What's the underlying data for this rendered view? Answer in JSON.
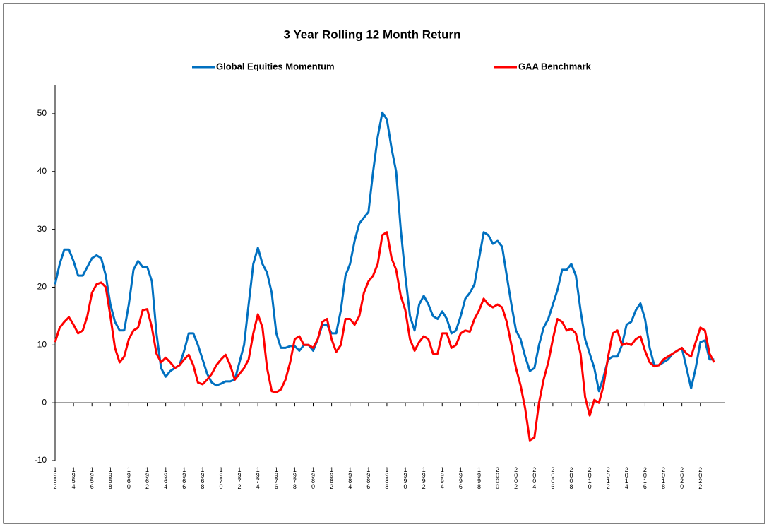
{
  "chart_data": {
    "type": "line",
    "title": "3 Year Rolling 12 Month Return",
    "legend": "top",
    "x": [
      1952,
      1952.5,
      1953,
      1953.5,
      1954,
      1954.5,
      1955,
      1955.5,
      1956,
      1956.5,
      1957,
      1957.5,
      1958,
      1958.5,
      1959,
      1959.5,
      1960,
      1960.5,
      1961,
      1961.5,
      1962,
      1962.5,
      1963,
      1963.5,
      1964,
      1964.5,
      1965,
      1965.5,
      1966,
      1966.5,
      1967,
      1967.5,
      1968,
      1968.5,
      1969,
      1969.5,
      1970,
      1970.5,
      1971,
      1971.5,
      1972,
      1972.5,
      1973,
      1973.5,
      1974,
      1974.5,
      1975,
      1975.5,
      1976,
      1976.5,
      1977,
      1977.5,
      1978,
      1978.5,
      1979,
      1979.5,
      1980,
      1980.5,
      1981,
      1981.5,
      1982,
      1982.5,
      1983,
      1983.5,
      1984,
      1984.5,
      1985,
      1985.5,
      1986,
      1986.5,
      1987,
      1987.5,
      1988,
      1988.5,
      1989,
      1989.5,
      1990,
      1990.5,
      1991,
      1991.5,
      1992,
      1992.5,
      1993,
      1993.5,
      1994,
      1994.5,
      1995,
      1995.5,
      1996,
      1996.5,
      1997,
      1997.5,
      1998,
      1998.5,
      1999,
      1999.5,
      2000,
      2000.5,
      2001,
      2001.5,
      2002,
      2002.5,
      2003,
      2003.5,
      2004,
      2004.5,
      2005,
      2005.5,
      2006,
      2006.5,
      2007,
      2007.5,
      2008,
      2008.5,
      2009,
      2009.5,
      2010,
      2010.5,
      2011,
      2011.5,
      2012,
      2012.5,
      2013,
      2013.5,
      2014,
      2014.5,
      2015,
      2015.5,
      2016,
      2016.5,
      2017,
      2017.5,
      2018,
      2018.5,
      2019,
      2019.5,
      2020,
      2020.5,
      2021,
      2021.5,
      2022,
      2022.5,
      2023,
      2023.5
    ],
    "series": [
      {
        "name": "Global Equities Momentum",
        "color": "#0070c0",
        "values": [
          20.5,
          24,
          26.5,
          26.5,
          24.5,
          22,
          22,
          23.5,
          25,
          25.5,
          25,
          22,
          17,
          14,
          12.5,
          12.5,
          17,
          23,
          24.5,
          23.5,
          23.5,
          21,
          12,
          6,
          4.5,
          5.5,
          6,
          6.5,
          9,
          12,
          12,
          10,
          7.5,
          5,
          3.5,
          3,
          3.3,
          3.7,
          3.7,
          4,
          7,
          10,
          17,
          24,
          26.8,
          24,
          22.5,
          19,
          12,
          9.5,
          9.5,
          9.8,
          9.8,
          9,
          10,
          10,
          9,
          11,
          13.5,
          13.5,
          12,
          12,
          16,
          22,
          24,
          28,
          31,
          32,
          33,
          40,
          46,
          50.2,
          49,
          44,
          40,
          30,
          22,
          15,
          12.5,
          17,
          18.5,
          17,
          15,
          14.5,
          15.8,
          14.5,
          12,
          12.5,
          15,
          18,
          19,
          20.5,
          25,
          29.5,
          29,
          27.5,
          28,
          27,
          22,
          17,
          12.5,
          11,
          8,
          5.5,
          6,
          10,
          13,
          14.5,
          17,
          19.5,
          23,
          23,
          24,
          22,
          16,
          11,
          8.5,
          6,
          2,
          4.5,
          7.5,
          8,
          8,
          10,
          13.5,
          14,
          16,
          17.2,
          14.5,
          9.5,
          6.5,
          6.5,
          7,
          7.5,
          8.5,
          9,
          9.5,
          6,
          2.5,
          6,
          10.5,
          10.8,
          7.5,
          7.5
        ]
      },
      {
        "name": "GAA Benchmark",
        "color": "#ff0000",
        "values": [
          10.5,
          13,
          14,
          14.8,
          13.5,
          12,
          12.5,
          15,
          19,
          20.5,
          20.8,
          20,
          15,
          9.5,
          7,
          8,
          11,
          12.5,
          13,
          16,
          16.2,
          13,
          8.5,
          7,
          7.8,
          7,
          6,
          6.5,
          7.5,
          8.3,
          6.5,
          3.5,
          3.2,
          4,
          5,
          6.5,
          7.5,
          8.3,
          6.5,
          4,
          5,
          6,
          7.5,
          12,
          15.3,
          13,
          6,
          2,
          1.8,
          2.3,
          4,
          7,
          11,
          11.5,
          10,
          10,
          9.5,
          11,
          14,
          14.5,
          11,
          8.8,
          10,
          14.5,
          14.5,
          13.5,
          15,
          19,
          21,
          22,
          24,
          29,
          29.5,
          25,
          23,
          18.5,
          16,
          11,
          9,
          10.5,
          11.5,
          11,
          8.5,
          8.5,
          12,
          12,
          9.5,
          10,
          12,
          12.5,
          12.3,
          14.5,
          16,
          18,
          17,
          16.5,
          17,
          16.5,
          14,
          10,
          6,
          3,
          -1,
          -6.5,
          -6,
          0,
          4,
          7,
          11,
          14.5,
          14,
          12.5,
          12.8,
          12,
          8.5,
          1,
          -2.2,
          0.5,
          0,
          3,
          8,
          12,
          12.5,
          10,
          10.3,
          10,
          11,
          11.5,
          9,
          7,
          6.3,
          6.5,
          7.5,
          8,
          8.5,
          9,
          9.5,
          8.5,
          8,
          10.5,
          13,
          12.5,
          8.5,
          7
        ]
      }
    ],
    "xlim": [
      1952,
      2024.7
    ],
    "xticks": [
      1952,
      1954,
      1956,
      1958,
      1960,
      1962,
      1964,
      1966,
      1968,
      1970,
      1972,
      1974,
      1976,
      1978,
      1980,
      1982,
      1984,
      1986,
      1988,
      1990,
      1992,
      1994,
      1996,
      1998,
      2000,
      2002,
      2004,
      2006,
      2008,
      2010,
      2012,
      2014,
      2016,
      2018,
      2020,
      2022
    ],
    "ylim": [
      -10,
      55
    ],
    "yticks": [
      -10,
      0,
      10,
      20,
      30,
      40,
      50
    ]
  }
}
